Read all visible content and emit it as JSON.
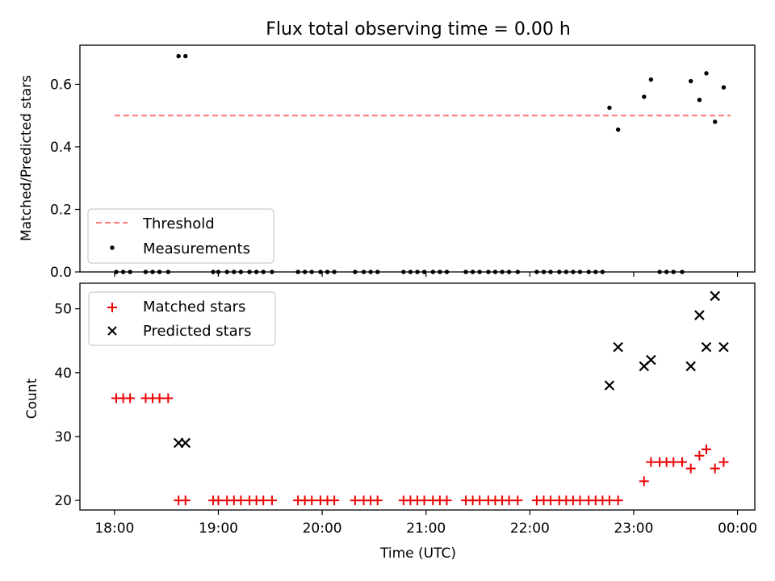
{
  "figure_title": "Flux total observing time = 0.00 h",
  "x_axis_label": "Time (UTC)",
  "chart_data": [
    {
      "type": "scatter",
      "title": "Flux total observing time = 0.00 h",
      "xlabel": "",
      "ylabel": "Matched/Predicted stars",
      "xlim": [
        "17:40",
        "00:10"
      ],
      "ylim": [
        0,
        0.725
      ],
      "yticks": [
        0.0,
        0.2,
        0.4,
        0.6
      ],
      "ytick_labels": [
        "0.0",
        "0.2",
        "0.4",
        "0.6"
      ],
      "grid": false,
      "legend_position": "lower-left",
      "threshold": {
        "name": "Threshold",
        "value": 0.5,
        "x_start": "18:00",
        "x_end": "23:56",
        "color": "#ff7777"
      },
      "series": [
        {
          "name": "Measurements",
          "color": "#000000",
          "marker": "dot",
          "points": [
            [
              "18:01",
              0
            ],
            [
              "18:05",
              0
            ],
            [
              "18:09",
              0
            ],
            [
              "18:18",
              0
            ],
            [
              "18:22",
              0
            ],
            [
              "18:26",
              0
            ],
            [
              "18:31",
              0
            ],
            [
              "18:37",
              0.69
            ],
            [
              "18:41",
              0.69
            ],
            [
              "18:57",
              0
            ],
            [
              "19:00",
              0
            ],
            [
              "19:05",
              0
            ],
            [
              "19:09",
              0
            ],
            [
              "19:13",
              0
            ],
            [
              "19:18",
              0
            ],
            [
              "19:22",
              0
            ],
            [
              "19:26",
              0
            ],
            [
              "19:31",
              0
            ],
            [
              "19:46",
              0
            ],
            [
              "19:50",
              0
            ],
            [
              "19:54",
              0
            ],
            [
              "19:59",
              0
            ],
            [
              "20:03",
              0
            ],
            [
              "20:07",
              0
            ],
            [
              "20:19",
              0
            ],
            [
              "20:24",
              0
            ],
            [
              "20:28",
              0
            ],
            [
              "20:32",
              0
            ],
            [
              "20:47",
              0
            ],
            [
              "20:51",
              0
            ],
            [
              "20:55",
              0
            ],
            [
              "20:59",
              0
            ],
            [
              "21:04",
              0
            ],
            [
              "21:08",
              0
            ],
            [
              "21:12",
              0
            ],
            [
              "21:23",
              0
            ],
            [
              "21:27",
              0
            ],
            [
              "21:31",
              0
            ],
            [
              "21:36",
              0
            ],
            [
              "21:40",
              0
            ],
            [
              "21:44",
              0
            ],
            [
              "21:48",
              0
            ],
            [
              "21:53",
              0
            ],
            [
              "22:04",
              0
            ],
            [
              "22:08",
              0
            ],
            [
              "22:12",
              0
            ],
            [
              "22:17",
              0
            ],
            [
              "22:21",
              0
            ],
            [
              "22:25",
              0
            ],
            [
              "22:29",
              0
            ],
            [
              "22:34",
              0
            ],
            [
              "22:38",
              0
            ],
            [
              "22:42",
              0
            ],
            [
              "22:46",
              0.525
            ],
            [
              "22:51",
              0.455
            ],
            [
              "23:06",
              0.56
            ],
            [
              "23:10",
              0.615
            ],
            [
              "23:15",
              0
            ],
            [
              "23:19",
              0
            ],
            [
              "23:23",
              0
            ],
            [
              "23:28",
              0
            ],
            [
              "23:33",
              0.61
            ],
            [
              "23:38",
              0.55
            ],
            [
              "23:42",
              0.635
            ],
            [
              "23:47",
              0.48
            ],
            [
              "23:52",
              0.59
            ]
          ]
        }
      ]
    },
    {
      "type": "scatter",
      "title": "",
      "xlabel": "Time (UTC)",
      "ylabel": "Count",
      "xlim": [
        "17:40",
        "00:10"
      ],
      "ylim": [
        18.5,
        54
      ],
      "yticks": [
        20,
        30,
        40,
        50
      ],
      "ytick_labels": [
        "20",
        "30",
        "40",
        "50"
      ],
      "xticks": [
        "18:00",
        "19:00",
        "20:00",
        "21:00",
        "22:00",
        "23:00",
        "24:00"
      ],
      "xtick_labels": [
        "18:00",
        "19:00",
        "20:00",
        "21:00",
        "22:00",
        "23:00",
        "00:00"
      ],
      "grid": false,
      "legend_position": "upper-left",
      "series": [
        {
          "name": "Matched stars",
          "color": "#ee0000",
          "marker": "plus",
          "points": [
            [
              "18:01",
              36
            ],
            [
              "18:05",
              36
            ],
            [
              "18:09",
              36
            ],
            [
              "18:18",
              36
            ],
            [
              "18:22",
              36
            ],
            [
              "18:26",
              36
            ],
            [
              "18:31",
              36
            ],
            [
              "18:37",
              20
            ],
            [
              "18:41",
              20
            ],
            [
              "18:57",
              20
            ],
            [
              "19:00",
              20
            ],
            [
              "19:05",
              20
            ],
            [
              "19:09",
              20
            ],
            [
              "19:13",
              20
            ],
            [
              "19:18",
              20
            ],
            [
              "19:22",
              20
            ],
            [
              "19:26",
              20
            ],
            [
              "19:31",
              20
            ],
            [
              "19:46",
              20
            ],
            [
              "19:50",
              20
            ],
            [
              "19:54",
              20
            ],
            [
              "19:59",
              20
            ],
            [
              "20:03",
              20
            ],
            [
              "20:07",
              20
            ],
            [
              "20:19",
              20
            ],
            [
              "20:24",
              20
            ],
            [
              "20:28",
              20
            ],
            [
              "20:32",
              20
            ],
            [
              "20:47",
              20
            ],
            [
              "20:51",
              20
            ],
            [
              "20:55",
              20
            ],
            [
              "20:59",
              20
            ],
            [
              "21:04",
              20
            ],
            [
              "21:08",
              20
            ],
            [
              "21:12",
              20
            ],
            [
              "21:23",
              20
            ],
            [
              "21:27",
              20
            ],
            [
              "21:31",
              20
            ],
            [
              "21:36",
              20
            ],
            [
              "21:40",
              20
            ],
            [
              "21:44",
              20
            ],
            [
              "21:48",
              20
            ],
            [
              "21:53",
              20
            ],
            [
              "22:04",
              20
            ],
            [
              "22:08",
              20
            ],
            [
              "22:12",
              20
            ],
            [
              "22:17",
              20
            ],
            [
              "22:21",
              20
            ],
            [
              "22:25",
              20
            ],
            [
              "22:29",
              20
            ],
            [
              "22:34",
              20
            ],
            [
              "22:38",
              20
            ],
            [
              "22:42",
              20
            ],
            [
              "22:46",
              20
            ],
            [
              "22:51",
              20
            ],
            [
              "23:06",
              23
            ],
            [
              "23:10",
              26
            ],
            [
              "23:15",
              26
            ],
            [
              "23:19",
              26
            ],
            [
              "23:23",
              26
            ],
            [
              "23:28",
              26
            ],
            [
              "23:33",
              25
            ],
            [
              "23:38",
              27
            ],
            [
              "23:42",
              28
            ],
            [
              "23:47",
              25
            ],
            [
              "23:52",
              26
            ]
          ]
        },
        {
          "name": "Predicted stars",
          "color": "#000000",
          "marker": "x",
          "points": [
            [
              "18:37",
              29
            ],
            [
              "18:41",
              29
            ],
            [
              "22:46",
              38
            ],
            [
              "22:51",
              44
            ],
            [
              "23:06",
              41
            ],
            [
              "23:10",
              42
            ],
            [
              "23:33",
              41
            ],
            [
              "23:38",
              49
            ],
            [
              "23:42",
              44
            ],
            [
              "23:47",
              52
            ],
            [
              "23:52",
              44
            ]
          ]
        }
      ]
    }
  ]
}
